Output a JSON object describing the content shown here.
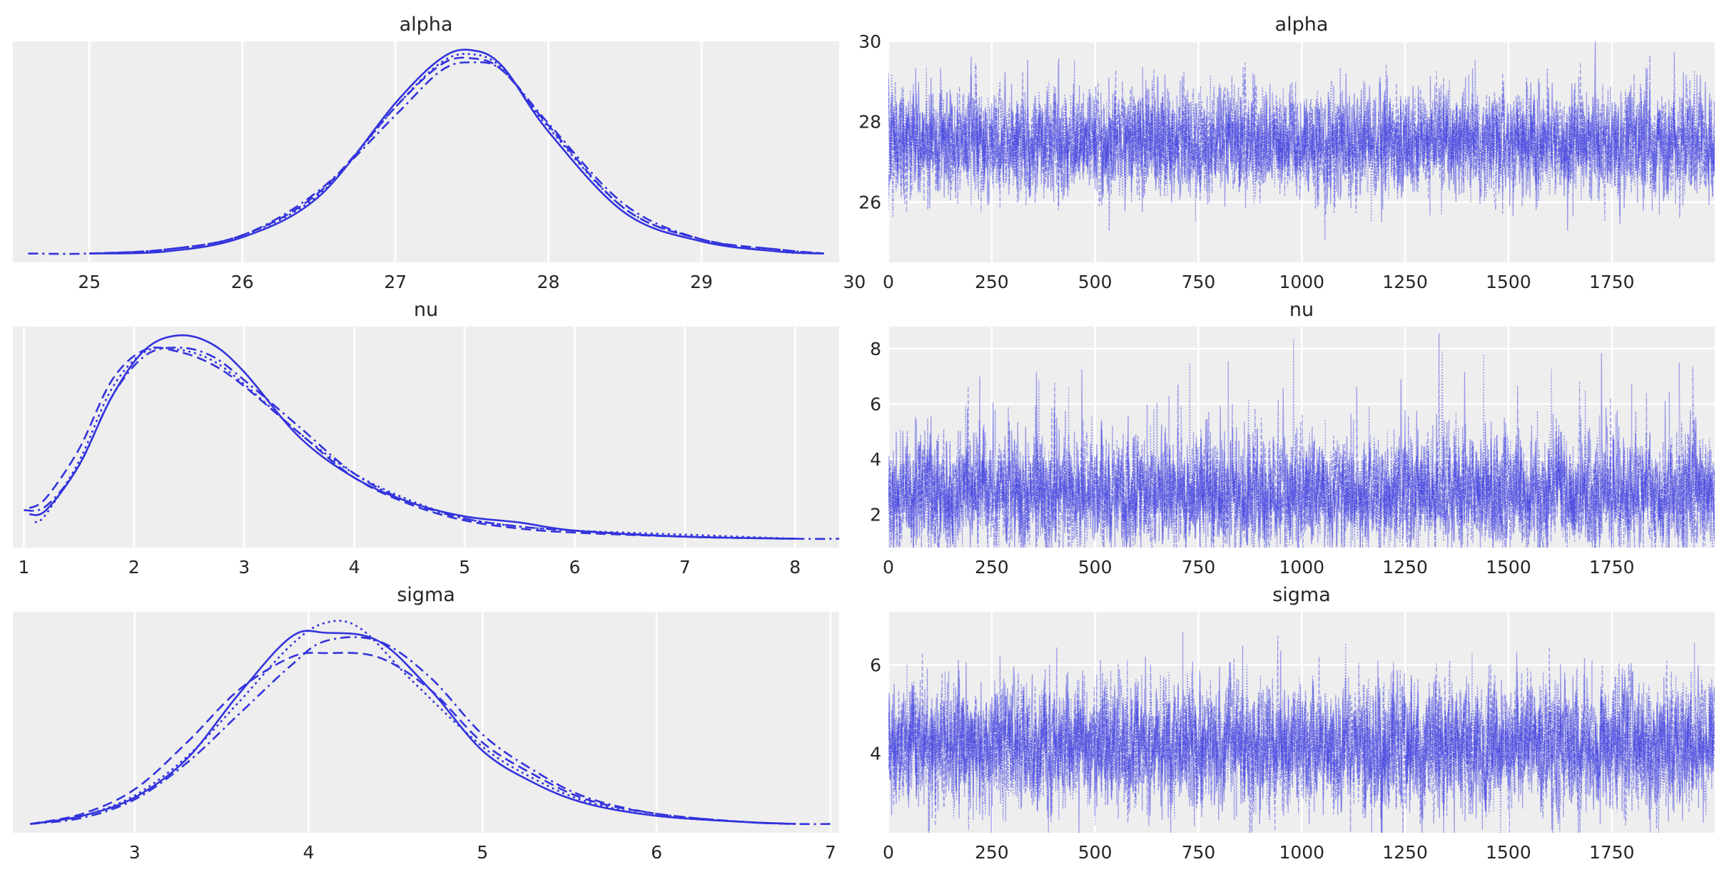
{
  "chart_data": [
    {
      "type": "line",
      "kind": "density",
      "title": "alpha",
      "xlim": [
        24.5,
        29.9
      ],
      "ylim": [
        0,
        1.0
      ],
      "x_ticks": [
        25,
        26,
        27,
        28,
        29,
        30
      ],
      "grid": true,
      "color": "#3333dd",
      "series": [
        {
          "linestyle": "solid",
          "x": [
            25.0,
            25.5,
            26.0,
            26.5,
            27.0,
            27.3,
            27.5,
            27.7,
            28.0,
            28.5,
            29.0,
            29.5,
            29.8
          ],
          "y": [
            0.0,
            0.01,
            0.08,
            0.28,
            0.74,
            0.96,
            1.0,
            0.92,
            0.6,
            0.2,
            0.06,
            0.01,
            0.0
          ]
        },
        {
          "linestyle": "dotted",
          "x": [
            25.0,
            25.5,
            26.0,
            26.5,
            27.0,
            27.3,
            27.5,
            27.7,
            28.0,
            28.5,
            29.0,
            29.5,
            29.8
          ],
          "y": [
            0.0,
            0.02,
            0.09,
            0.29,
            0.72,
            0.94,
            0.98,
            0.91,
            0.62,
            0.22,
            0.07,
            0.01,
            0.0
          ]
        },
        {
          "linestyle": "dashed",
          "x": [
            25.0,
            25.5,
            26.0,
            26.5,
            27.0,
            27.3,
            27.5,
            27.7,
            28.0,
            28.5,
            29.0,
            29.5,
            29.8
          ],
          "y": [
            0.0,
            0.02,
            0.09,
            0.3,
            0.72,
            0.93,
            0.96,
            0.9,
            0.63,
            0.22,
            0.07,
            0.02,
            0.0
          ]
        },
        {
          "linestyle": "dashdot",
          "x": [
            24.6,
            25.0,
            25.5,
            26.0,
            26.5,
            27.0,
            27.3,
            27.5,
            27.7,
            28.0,
            28.5,
            29.0,
            29.5,
            29.8
          ],
          "y": [
            0.0,
            0.0,
            0.02,
            0.09,
            0.31,
            0.68,
            0.9,
            0.94,
            0.9,
            0.64,
            0.24,
            0.07,
            0.02,
            0.0
          ]
        }
      ]
    },
    {
      "type": "line",
      "kind": "trace",
      "title": "alpha",
      "xlim": [
        0,
        1999
      ],
      "ylim": [
        24.5,
        30.0
      ],
      "x_ticks": [
        0,
        250,
        500,
        750,
        1000,
        1250,
        1500,
        1750
      ],
      "y_ticks": [
        26,
        28,
        30
      ],
      "grid": true,
      "color": "#3333dd",
      "center": 27.5,
      "spread": 0.6
    },
    {
      "type": "line",
      "kind": "density",
      "title": "nu",
      "xlim": [
        0.9,
        8.4
      ],
      "ylim": [
        0,
        1.0
      ],
      "x_ticks": [
        1,
        2,
        3,
        4,
        5,
        6,
        7,
        8
      ],
      "grid": true,
      "color": "#3333dd",
      "series": [
        {
          "linestyle": "solid",
          "x": [
            1.05,
            1.2,
            1.5,
            1.8,
            2.1,
            2.4,
            2.7,
            3.0,
            3.5,
            4.0,
            4.5,
            5.0,
            5.5,
            6.0,
            7.0,
            8.0
          ],
          "y": [
            0.12,
            0.14,
            0.36,
            0.7,
            0.93,
            1.0,
            0.96,
            0.82,
            0.5,
            0.3,
            0.18,
            0.11,
            0.08,
            0.04,
            0.01,
            0.0
          ]
        },
        {
          "linestyle": "dotted",
          "x": [
            1.1,
            1.2,
            1.5,
            1.8,
            2.1,
            2.4,
            2.7,
            3.0,
            3.5,
            4.0,
            4.5,
            5.0,
            5.5,
            6.0,
            7.0,
            8.0
          ],
          "y": [
            0.08,
            0.12,
            0.38,
            0.74,
            0.92,
            0.93,
            0.88,
            0.76,
            0.52,
            0.32,
            0.19,
            0.1,
            0.06,
            0.04,
            0.02,
            0.0
          ]
        },
        {
          "linestyle": "dashed",
          "x": [
            1.05,
            1.2,
            1.5,
            1.8,
            2.1,
            2.4,
            2.7,
            3.0,
            3.5,
            4.0,
            4.5,
            5.0,
            5.5,
            6.0,
            7.0,
            8.0
          ],
          "y": [
            0.15,
            0.2,
            0.44,
            0.78,
            0.93,
            0.92,
            0.86,
            0.75,
            0.52,
            0.3,
            0.17,
            0.09,
            0.05,
            0.03,
            0.01,
            0.0
          ]
        },
        {
          "linestyle": "dashdot",
          "x": [
            1.0,
            1.2,
            1.5,
            1.8,
            2.1,
            2.4,
            2.7,
            3.0,
            3.5,
            4.0,
            4.5,
            5.0,
            5.5,
            6.0,
            7.0,
            8.0,
            8.4
          ],
          "y": [
            0.14,
            0.16,
            0.36,
            0.7,
            0.9,
            0.94,
            0.9,
            0.78,
            0.55,
            0.32,
            0.18,
            0.1,
            0.06,
            0.04,
            0.01,
            0.0,
            0.0
          ]
        }
      ]
    },
    {
      "type": "line",
      "kind": "trace",
      "title": "nu",
      "xlim": [
        0,
        1999
      ],
      "ylim": [
        0.8,
        8.8
      ],
      "x_ticks": [
        0,
        250,
        500,
        750,
        1000,
        1250,
        1500,
        1750
      ],
      "y_ticks": [
        2,
        4,
        6,
        8
      ],
      "grid": true,
      "color": "#3333dd",
      "center": 2.7,
      "spread": 0.9
    },
    {
      "type": "line",
      "kind": "density",
      "title": "sigma",
      "xlim": [
        2.3,
        7.05
      ],
      "ylim": [
        0,
        1.0
      ],
      "x_ticks": [
        3,
        4,
        5,
        6,
        7
      ],
      "grid": true,
      "color": "#3333dd",
      "series": [
        {
          "linestyle": "solid",
          "x": [
            2.4,
            2.7,
            3.0,
            3.3,
            3.6,
            3.9,
            4.1,
            4.4,
            4.7,
            5.0,
            5.3,
            5.6,
            6.0,
            6.5,
            6.8
          ],
          "y": [
            0.0,
            0.04,
            0.13,
            0.32,
            0.64,
            0.92,
            0.94,
            0.9,
            0.66,
            0.36,
            0.2,
            0.1,
            0.04,
            0.01,
            0.0
          ]
        },
        {
          "linestyle": "dotted",
          "x": [
            2.4,
            2.7,
            3.0,
            3.3,
            3.6,
            3.9,
            4.1,
            4.3,
            4.6,
            5.0,
            5.3,
            5.6,
            6.0,
            6.5,
            6.8
          ],
          "y": [
            0.0,
            0.04,
            0.14,
            0.33,
            0.6,
            0.88,
            0.99,
            0.96,
            0.7,
            0.38,
            0.22,
            0.11,
            0.04,
            0.01,
            0.0
          ]
        },
        {
          "linestyle": "dashed",
          "x": [
            2.4,
            2.7,
            3.0,
            3.3,
            3.6,
            3.9,
            4.1,
            4.4,
            4.7,
            5.0,
            5.3,
            5.6,
            6.0,
            6.5,
            6.8
          ],
          "y": [
            0.0,
            0.05,
            0.17,
            0.4,
            0.66,
            0.82,
            0.84,
            0.82,
            0.66,
            0.4,
            0.24,
            0.12,
            0.05,
            0.01,
            0.0
          ]
        },
        {
          "linestyle": "dashdot",
          "x": [
            2.4,
            2.7,
            3.0,
            3.3,
            3.6,
            3.9,
            4.1,
            4.4,
            4.7,
            5.0,
            5.3,
            5.6,
            6.0,
            6.5,
            6.8,
            7.0
          ],
          "y": [
            0.0,
            0.03,
            0.12,
            0.3,
            0.54,
            0.78,
            0.9,
            0.9,
            0.72,
            0.44,
            0.26,
            0.13,
            0.05,
            0.01,
            0.0,
            0.0
          ]
        }
      ]
    },
    {
      "type": "line",
      "kind": "trace",
      "title": "sigma",
      "xlim": [
        0,
        1999
      ],
      "ylim": [
        2.2,
        7.2
      ],
      "x_ticks": [
        0,
        250,
        500,
        750,
        1000,
        1250,
        1500,
        1750
      ],
      "y_ticks": [
        4,
        6
      ],
      "grid": true,
      "color": "#3333dd",
      "center": 4.2,
      "spread": 0.65
    }
  ]
}
